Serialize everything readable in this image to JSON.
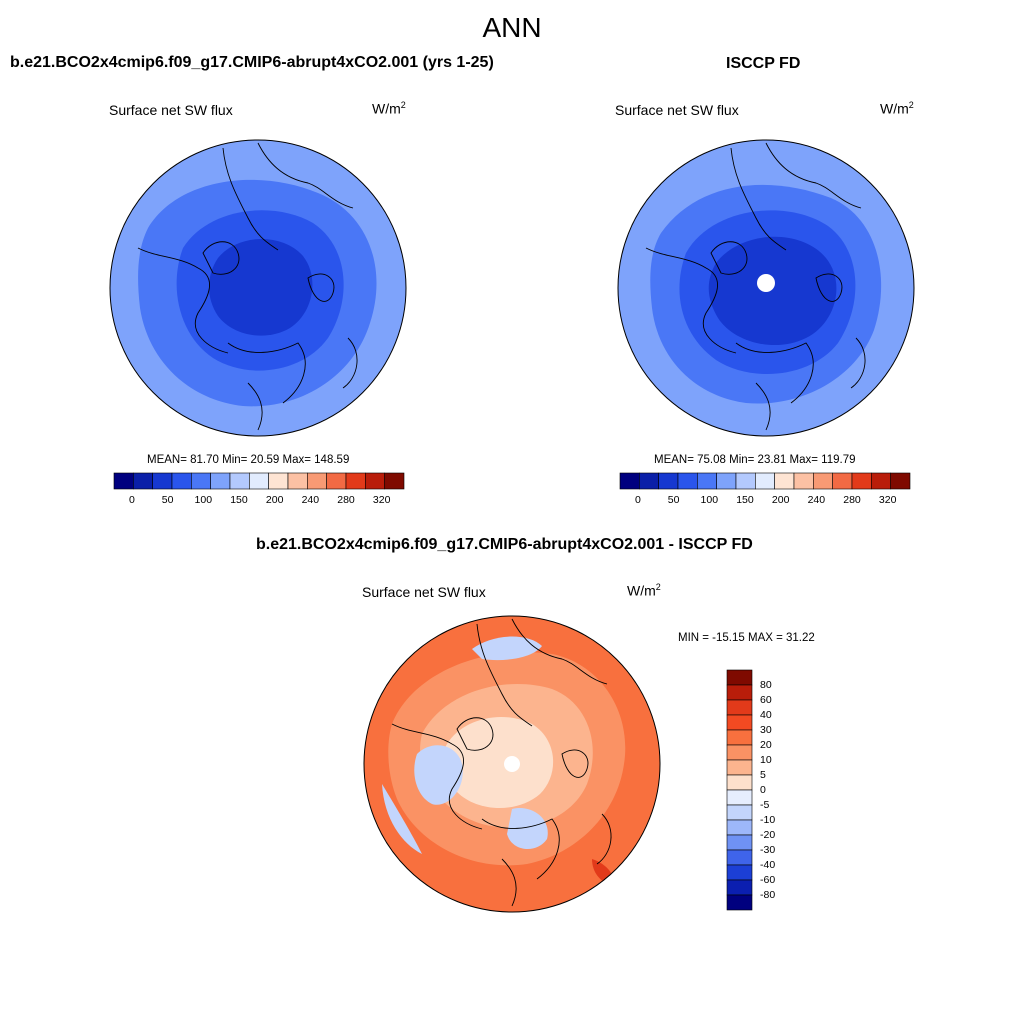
{
  "title": "ANN",
  "colorbar_colors": [
    "#00007f",
    "#0a1fa8",
    "#1638d0",
    "#2a55ec",
    "#4a77f6",
    "#7ea3fb",
    "#b3c9fd",
    "#e2ecfe",
    "#fee4d3",
    "#fcc1a4",
    "#f89a74",
    "#f26a44",
    "#e23a1a",
    "#b91d0a",
    "#7f0a00"
  ],
  "panels": [
    {
      "title": "b.e21.BCO2x4cmip6.f09_g17.CMIP6-abrupt4xCO2.001 (yrs 1-25)",
      "variable": "Surface net SW flux",
      "units_base": "W/m",
      "units_exp": "2",
      "stats": "MEAN=  81.70  Min=  20.59  Max= 148.59",
      "colorbar_labels": [
        "0",
        "50",
        "100",
        "150",
        "200",
        "240",
        "280",
        "320"
      ],
      "colors": {
        "outer": "#7ea3fb",
        "mid": "#4a77f6",
        "inner": "#2a55ec",
        "core": "#1638d0"
      }
    },
    {
      "title": "ISCCP FD",
      "variable": "Surface net SW flux",
      "units_base": "W/m",
      "units_exp": "2",
      "stats": "MEAN=  75.08  Min=  23.81  Max= 119.79",
      "colorbar_labels": [
        "0",
        "50",
        "100",
        "150",
        "200",
        "240",
        "280",
        "320"
      ],
      "colors": {
        "outer": "#7ea3fb",
        "mid": "#4a77f6",
        "inner": "#2a55ec",
        "core": "#1638d0"
      }
    }
  ],
  "diff": {
    "title": "b.e21.BCO2x4cmip6.f09_g17.CMIP6-abrupt4xCO2.001 - ISCCP FD",
    "variable": "Surface net SW flux",
    "units_base": "W/m",
    "units_exp": "2",
    "minmax": "MIN = -15.15 MAX =  31.22",
    "colorbar_labels": [
      "80",
      "60",
      "40",
      "30",
      "20",
      "10",
      "5",
      "0",
      "-5",
      "-10",
      "-20",
      "-30",
      "-40",
      "-60",
      "-80"
    ],
    "colorbar_colors": [
      "#7f0a00",
      "#b91d0a",
      "#e23a1a",
      "#f24a22",
      "#f8703e",
      "#fa9264",
      "#fcb48e",
      "#fde0cc",
      "#e6eefe",
      "#c3d5fc",
      "#9db7fa",
      "#6f92f4",
      "#3f64ea",
      "#1c3fd6",
      "#0b1fb0",
      "#00007f"
    ]
  }
}
